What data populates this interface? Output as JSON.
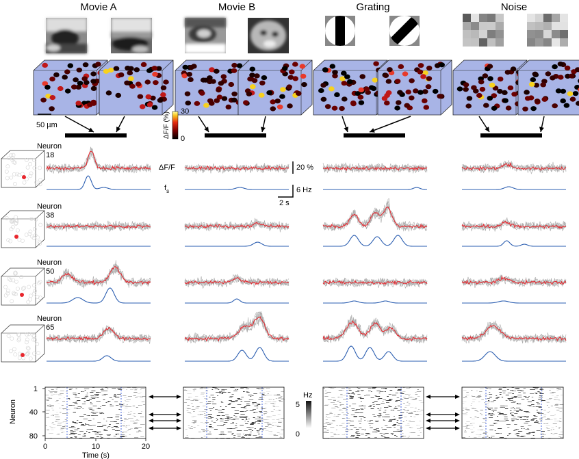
{
  "stimuli": [
    {
      "name": "Movie A"
    },
    {
      "name": "Movie B"
    },
    {
      "name": "Grating"
    },
    {
      "name": "Noise"
    }
  ],
  "scale_bar": {
    "label": "50 µm"
  },
  "colorbar": {
    "label": "ΔF/F (%)",
    "max": "30",
    "min": "0",
    "colors": [
      "#000000",
      "#7a0000",
      "#e52a10",
      "#f7c31e",
      "#ffffa0"
    ]
  },
  "trace_labels": {
    "dff": "ΔF/F",
    "fs": "f",
    "fs_sub": "s",
    "dff_scale": "20 %",
    "fs_scale": "6 Hz",
    "time_scale": "2 s"
  },
  "neurons": [
    {
      "label": "Neuron",
      "id": "# 18"
    },
    {
      "label": "Neuron",
      "id": "# 38"
    },
    {
      "label": "Neuron",
      "id": "# 50"
    },
    {
      "label": "Neuron",
      "id": "# 65"
    }
  ],
  "raster": {
    "y_axis_label": "Neuron",
    "y_ticks": [
      "1",
      "40",
      "80"
    ],
    "x_axis_label": "Time (s)",
    "x_ticks": [
      "0",
      "10",
      "20"
    ],
    "cbar_unit": "Hz",
    "cbar_max": "5",
    "cbar_min": "0"
  },
  "colors": {
    "trace_mean": "#e8262d",
    "trace_trial": "#aaaaaa",
    "rate": "#2a5db0",
    "cube_fill": "#a8b4e6",
    "onset_line": "#4466dd"
  }
}
